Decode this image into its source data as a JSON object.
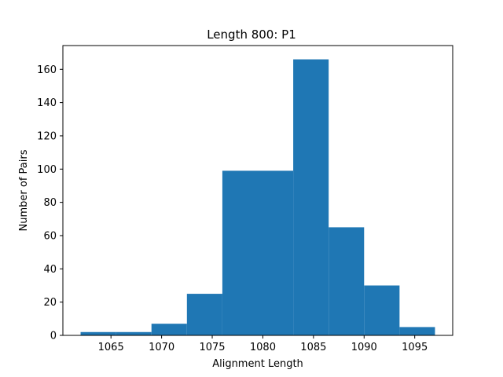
{
  "chart_data": {
    "type": "bar",
    "title": "Length 800: P1",
    "xlabel": "Alignment Length",
    "ylabel": "Number of Pairs",
    "bin_edges": [
      1062.0,
      1065.5,
      1069.0,
      1072.5,
      1076.0,
      1079.5,
      1083.0,
      1086.5,
      1090.0,
      1093.5,
      1097.0
    ],
    "values": [
      2,
      2,
      7,
      25,
      99,
      99,
      166,
      65,
      30,
      5
    ],
    "xlim": [
      1060.25,
      1098.75
    ],
    "ylim": [
      0,
      174.3
    ],
    "xticks": [
      1065,
      1070,
      1075,
      1080,
      1085,
      1090,
      1095
    ],
    "yticks": [
      0,
      20,
      40,
      60,
      80,
      100,
      120,
      140,
      160
    ],
    "bar_color": "#1f77b4",
    "grid": false,
    "legend": false
  }
}
